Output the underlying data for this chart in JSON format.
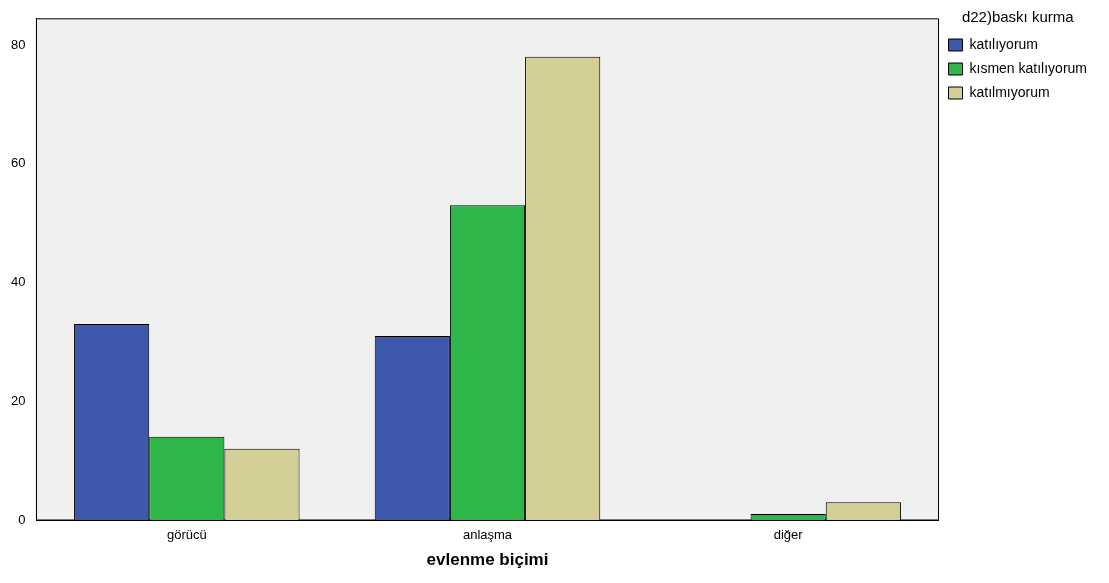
{
  "chart_data": {
    "type": "bar",
    "xlabel": "evlenme biçimi",
    "legend_title": "d22)baskı kurma",
    "categories": [
      "görücü",
      "anlaşma",
      "diğer"
    ],
    "series": [
      {
        "name": "katılıyorum",
        "color": "#3e58ac",
        "values": [
          33,
          31,
          0
        ]
      },
      {
        "name": "kısmen katılıyorum",
        "color": "#2eb648",
        "values": [
          14,
          53,
          1
        ]
      },
      {
        "name": "katılmıyorum",
        "color": "#d4cf97",
        "values": [
          12,
          78,
          3
        ]
      }
    ],
    "ylim": [
      0,
      84.4
    ],
    "yticks": [
      0,
      20,
      40,
      60,
      80
    ],
    "grid": false,
    "legend": "top right"
  }
}
